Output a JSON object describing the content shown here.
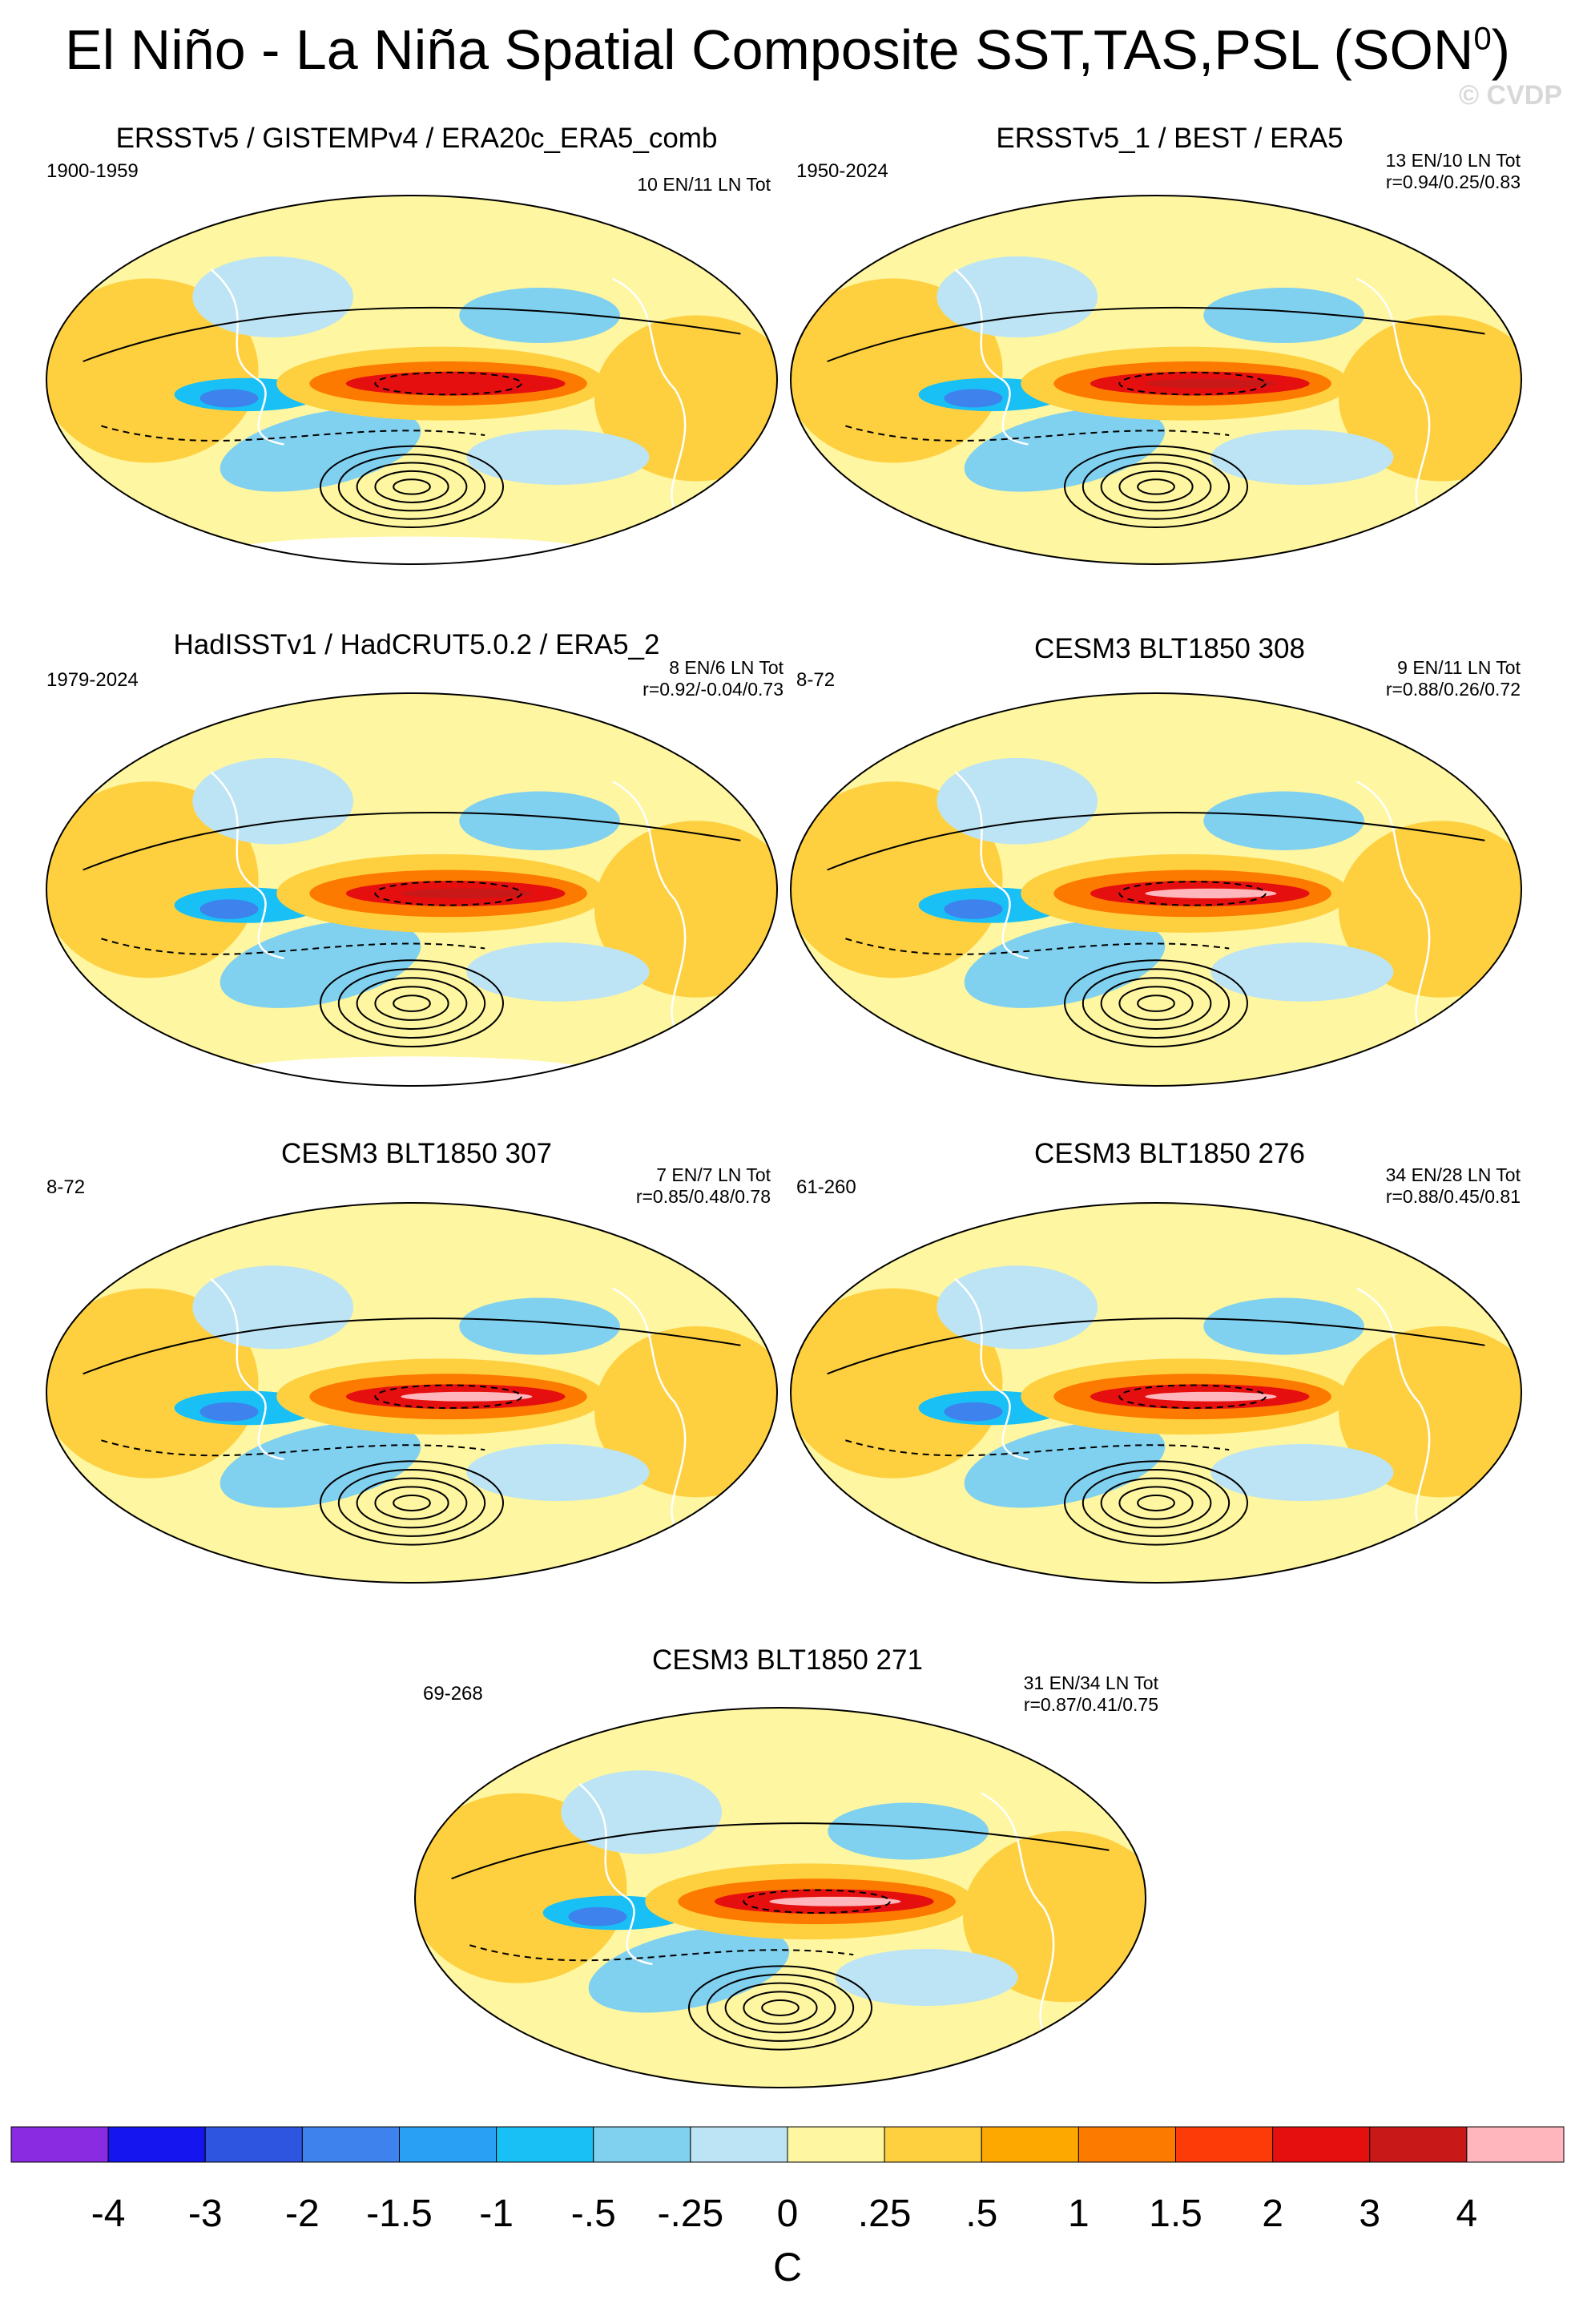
{
  "title": "El Niño - La Niña Spatial Composite SST,TAS,PSL (SON",
  "title_superscript": "0",
  "title_close": ")",
  "credit": "© CVDP",
  "palette": [
    "#8a2be2",
    "#1515f0",
    "#2e55e0",
    "#3d82ed",
    "#2aa0f5",
    "#18c0f5",
    "#80d0f0",
    "#bde4f4",
    "#fef6a0",
    "#fed040",
    "#fda800",
    "#fd7a00",
    "#fc3b08",
    "#e60f0f",
    "#c81818",
    "#ffb6bc"
  ],
  "chart_data": [
    {
      "type": "heatmap",
      "title": "ERSSTv5 / GISTEMPv4 / ERA20c_ERA5_comb",
      "years": "1900-1959",
      "stat_line1": "10 EN/11 LN Tot",
      "stat_line2": "",
      "warm_peak_c": 2,
      "missing_data": true
    },
    {
      "type": "heatmap",
      "title": "ERSSTv5_1 / BEST / ERA5",
      "years": "1950-2024",
      "stat_line1": "13 EN/10 LN Tot",
      "stat_line2": "r=0.94/0.25/0.83",
      "warm_peak_c": 3,
      "missing_data": false
    },
    {
      "type": "heatmap",
      "title": "HadISSTv1 / HadCRUT5.0.2 / ERA5_2",
      "years": "1979-2024",
      "stat_line1": "8 EN/6 LN Tot",
      "stat_line2": "r=0.92/-0.04/0.73",
      "warm_peak_c": 3,
      "missing_data": true
    },
    {
      "type": "heatmap",
      "title": "CESM3 BLT1850 308",
      "years": "8-72",
      "stat_line1": "9 EN/11 LN Tot",
      "stat_line2": "r=0.88/0.26/0.72",
      "warm_peak_c": 4,
      "missing_data": false
    },
    {
      "type": "heatmap",
      "title": "CESM3 BLT1850 307",
      "years": "8-72",
      "stat_line1": "7 EN/7 LN Tot",
      "stat_line2": "r=0.85/0.48/0.78",
      "warm_peak_c": 4,
      "missing_data": false
    },
    {
      "type": "heatmap",
      "title": "CESM3 BLT1850 276",
      "years": "61-260",
      "stat_line1": "34 EN/28 LN Tot",
      "stat_line2": "r=0.88/0.45/0.81",
      "warm_peak_c": 4,
      "missing_data": false
    },
    {
      "type": "heatmap",
      "title": "CESM3 BLT1850 271",
      "years": "69-268",
      "stat_line1": "31 EN/34 LN Tot",
      "stat_line2": "r=0.87/0.41/0.75",
      "warm_peak_c": 4,
      "missing_data": false
    }
  ],
  "colorbar": {
    "labels": [
      "-4",
      "-3",
      "-2",
      "-1.5",
      "-1",
      "-.5",
      "-.25",
      "0",
      ".25",
      ".5",
      "1",
      "1.5",
      "2",
      "3",
      "4"
    ],
    "units": "C"
  }
}
